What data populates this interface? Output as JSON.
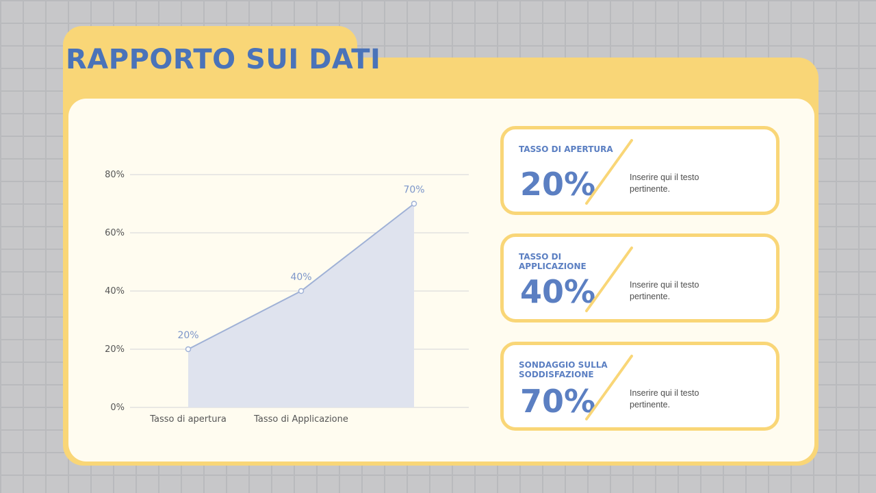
{
  "page": {
    "title": "RAPPORTO SUI DATI"
  },
  "colors": {
    "accent": "#f9d677",
    "primary": "#5b7fc2",
    "title": "#4a73b9",
    "panel": "#fffcf0",
    "area_fill": "#dfe3ee",
    "line": "#9fb1d6"
  },
  "chart_data": {
    "type": "area",
    "categories": [
      "Tasso di apertura",
      "Tasso di Applicazione",
      ""
    ],
    "values": [
      20,
      40,
      70
    ],
    "data_labels": [
      "20%",
      "40%",
      "70%"
    ],
    "yticks": [
      "0%",
      "20%",
      "40%",
      "60%",
      "80%"
    ],
    "ylim": [
      0,
      80
    ],
    "grid": true,
    "legend": "none"
  },
  "cards": [
    {
      "label": "TASSO DI APERTURA",
      "value": "20%",
      "text": "Inserire qui il testo pertinente."
    },
    {
      "label": "TASSO DI APPLICAZIONE",
      "value": "40%",
      "text": "Inserire qui il testo pertinente."
    },
    {
      "label": "SONDAGGIO SULLA SODDISFAZIONE",
      "value": "70%",
      "text": "Inserire qui il testo pertinente."
    }
  ]
}
